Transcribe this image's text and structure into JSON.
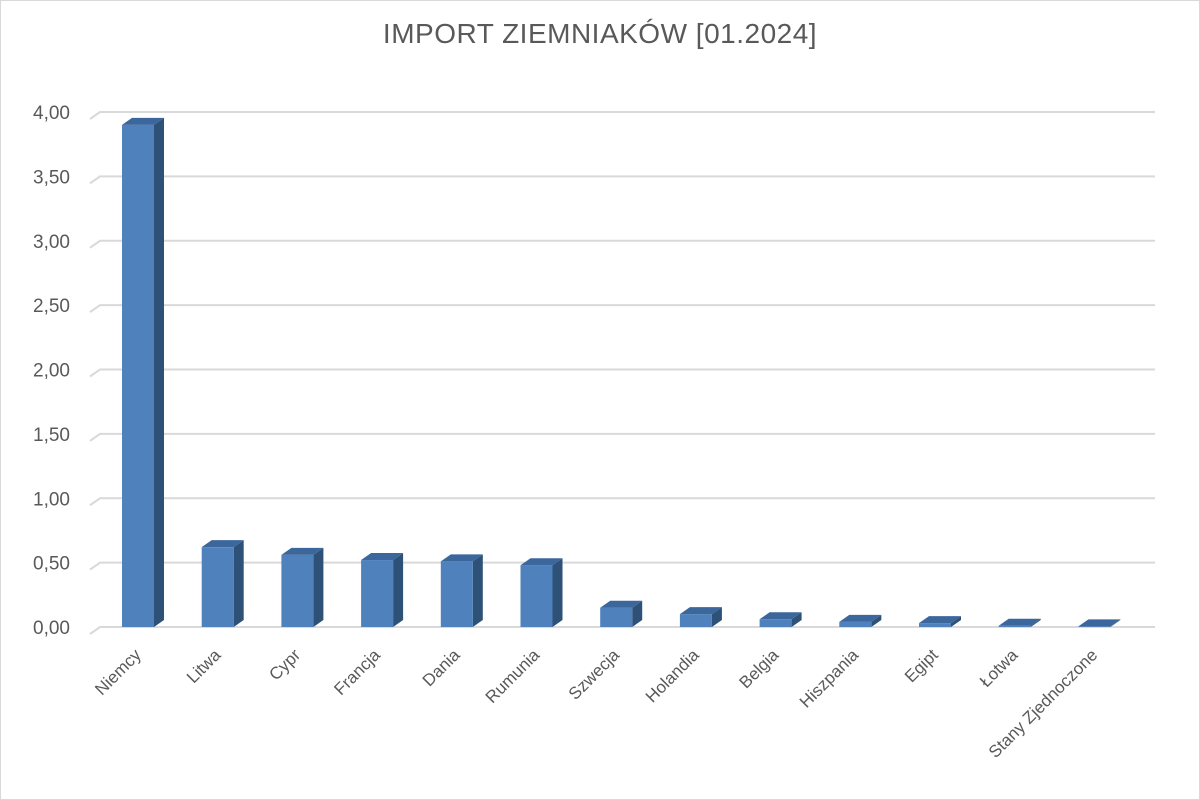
{
  "chart_data": {
    "type": "bar",
    "title": "IMPORT ZIEMNIAKÓW [01.2024]",
    "xlabel": "",
    "ylabel": "",
    "categories": [
      "Niemcy",
      "Litwa",
      "Cypr",
      "Francja",
      "Dania",
      "Rumunia",
      "Szwecja",
      "Holandia",
      "Belgia",
      "Hiszpania",
      "Egipt",
      "Łotwa",
      "Stany Zjednoczone"
    ],
    "values": [
      3.9,
      0.62,
      0.56,
      0.52,
      0.51,
      0.48,
      0.15,
      0.1,
      0.06,
      0.04,
      0.03,
      0.01,
      0.005
    ],
    "ylim": [
      0,
      4
    ],
    "yticks": [
      "0,00",
      "0,50",
      "1,00",
      "1,50",
      "2,00",
      "2,50",
      "3,00",
      "3,50",
      "4,00"
    ],
    "grid": true,
    "legend": "none",
    "colors": {
      "front": "#4f81bd",
      "top": "#3b679c",
      "side": "#2e5178",
      "grid": "#d9d9d9"
    }
  }
}
